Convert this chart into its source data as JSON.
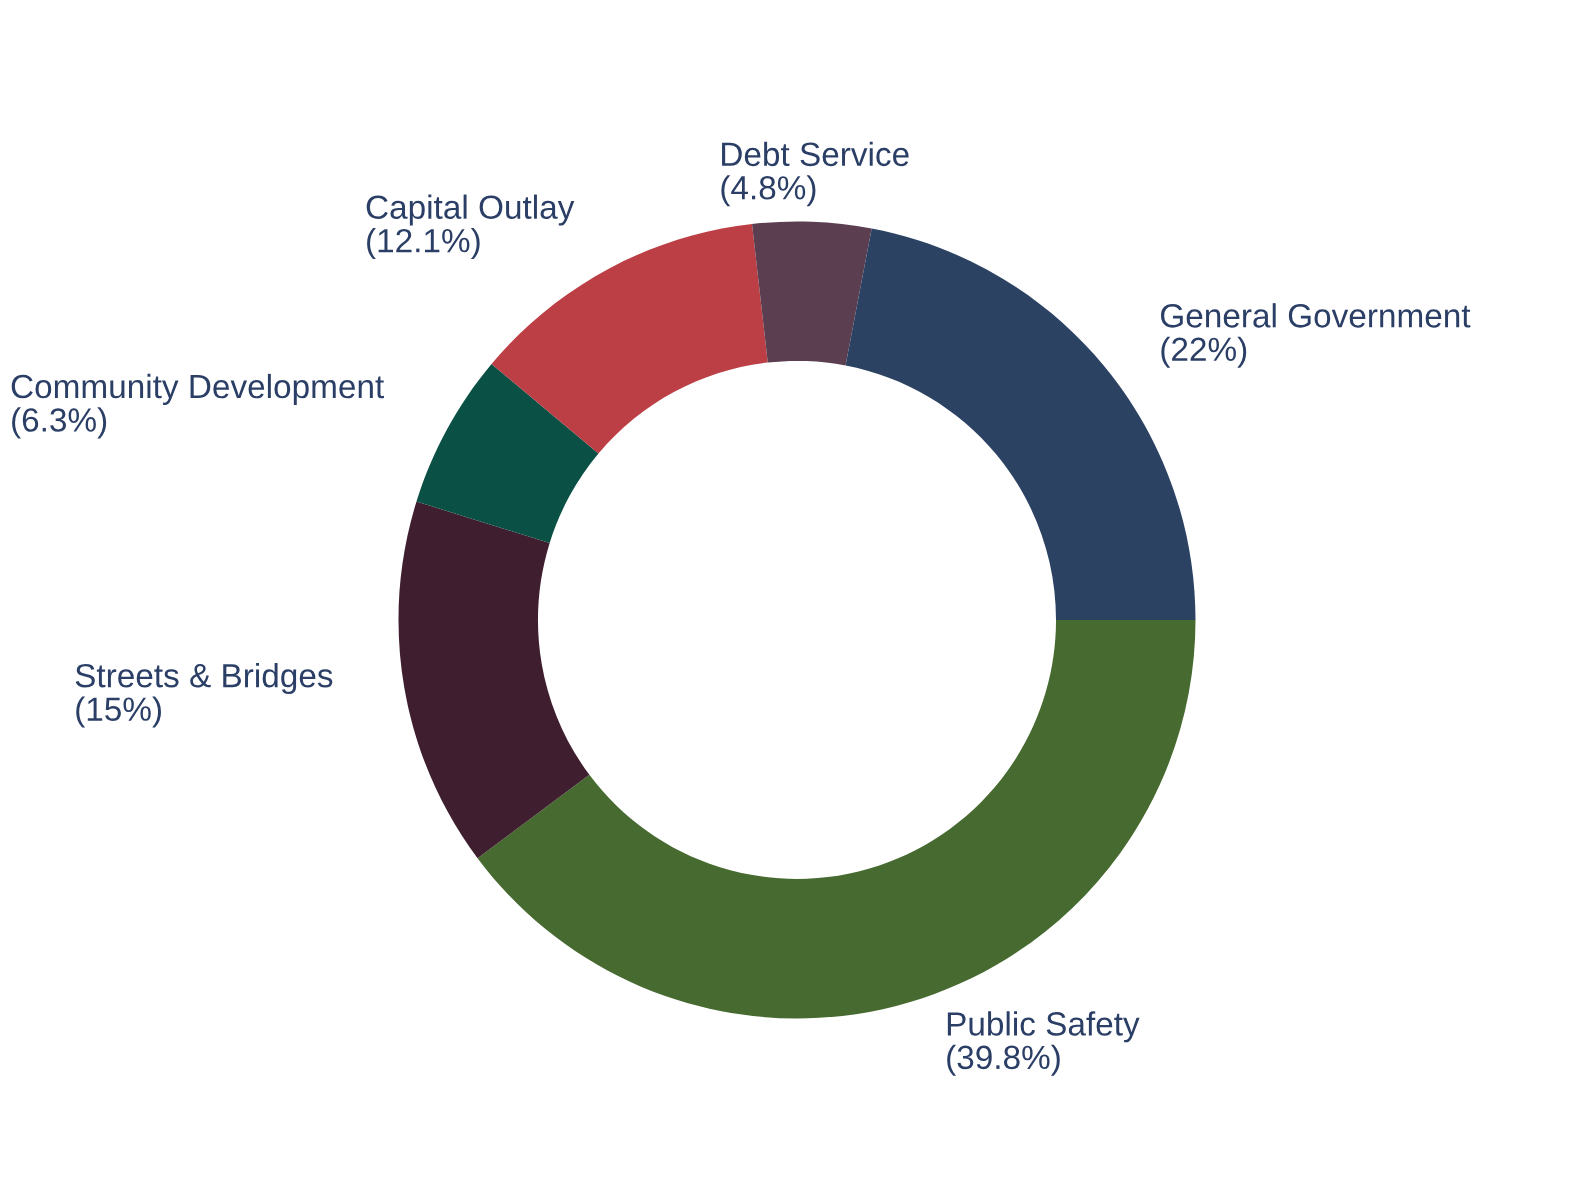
{
  "chart_data": {
    "type": "donut",
    "categories": [
      "Public Safety",
      "Streets & Bridges",
      "Community Development",
      "Capital Outlay",
      "Debt Service",
      "General Government"
    ],
    "values": [
      39.8,
      15,
      6.3,
      12.1,
      4.8,
      22
    ],
    "value_labels": [
      "(39.8%)",
      "(15%)",
      "(6.3%)",
      "(12.1%)",
      "(4.8%)",
      "(22%)"
    ],
    "colors": [
      "#466a30",
      "#3f1f2f",
      "#0b5044",
      "#bb3f45",
      "#5b3e50",
      "#2b4263"
    ]
  }
}
